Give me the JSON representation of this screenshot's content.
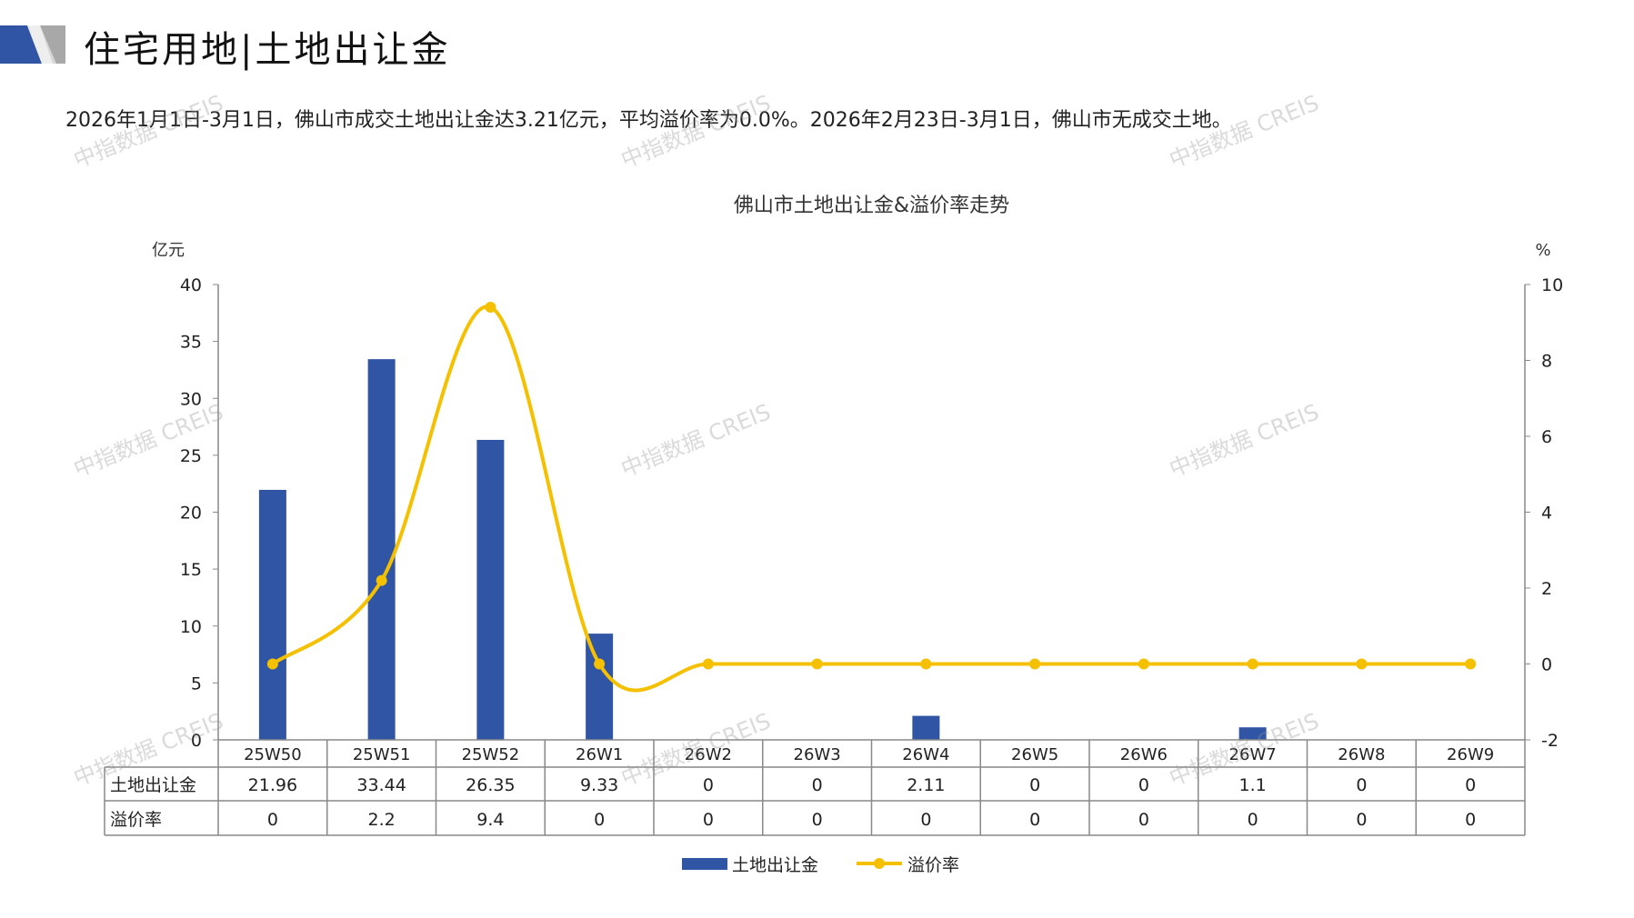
{
  "header": {
    "title": "住宅用地|土地出让金",
    "summary": "2026年1月1日-3月1日，佛山市成交土地出让金达3.21亿元，平均溢价率为0.0%。2026年2月23日-3月1日，佛山市无成交土地。"
  },
  "watermark": "中指数据 CREIS",
  "colors": {
    "bar": "#2F55A4",
    "line": "#F5C000",
    "logo_blue": "#2F55A4",
    "logo_gray": "#B8B8B8"
  },
  "chart_data": {
    "type": "bar+line",
    "title": "佛山市土地出让金&溢价率走势",
    "categories": [
      "25W50",
      "25W51",
      "25W52",
      "26W1",
      "26W2",
      "26W3",
      "26W4",
      "26W5",
      "26W6",
      "26W7",
      "26W8",
      "26W9"
    ],
    "y_left": {
      "label": "亿元",
      "range": [
        0,
        40
      ],
      "ticks": [
        "0",
        "5",
        "10",
        "15",
        "20",
        "25",
        "30",
        "35",
        "40"
      ]
    },
    "y_right": {
      "label": "%",
      "range": [
        -2,
        10
      ],
      "ticks": [
        "-2",
        "0",
        "2",
        "4",
        "6",
        "8",
        "10"
      ]
    },
    "series": [
      {
        "name": "土地出让金",
        "type": "bar",
        "axis": "left",
        "values": [
          21.96,
          33.44,
          26.35,
          9.33,
          0,
          0,
          2.11,
          0,
          0,
          1.1,
          0,
          0
        ],
        "labels": [
          "21.96",
          "33.44",
          "26.35",
          "9.33",
          "0",
          "0",
          "2.11",
          "0",
          "0",
          "1.1",
          "0",
          "0"
        ]
      },
      {
        "name": "溢价率",
        "type": "line",
        "smooth": true,
        "axis": "right",
        "values": [
          0,
          2.2,
          9.4,
          0,
          0,
          0,
          0,
          0,
          0,
          0,
          0,
          0
        ],
        "labels": [
          "0",
          "2.2",
          "9.4",
          "0",
          "0",
          "0",
          "0",
          "0",
          "0",
          "0",
          "0",
          "0"
        ]
      }
    ],
    "data_table": true,
    "legend": "bottom-center",
    "grid": false
  }
}
